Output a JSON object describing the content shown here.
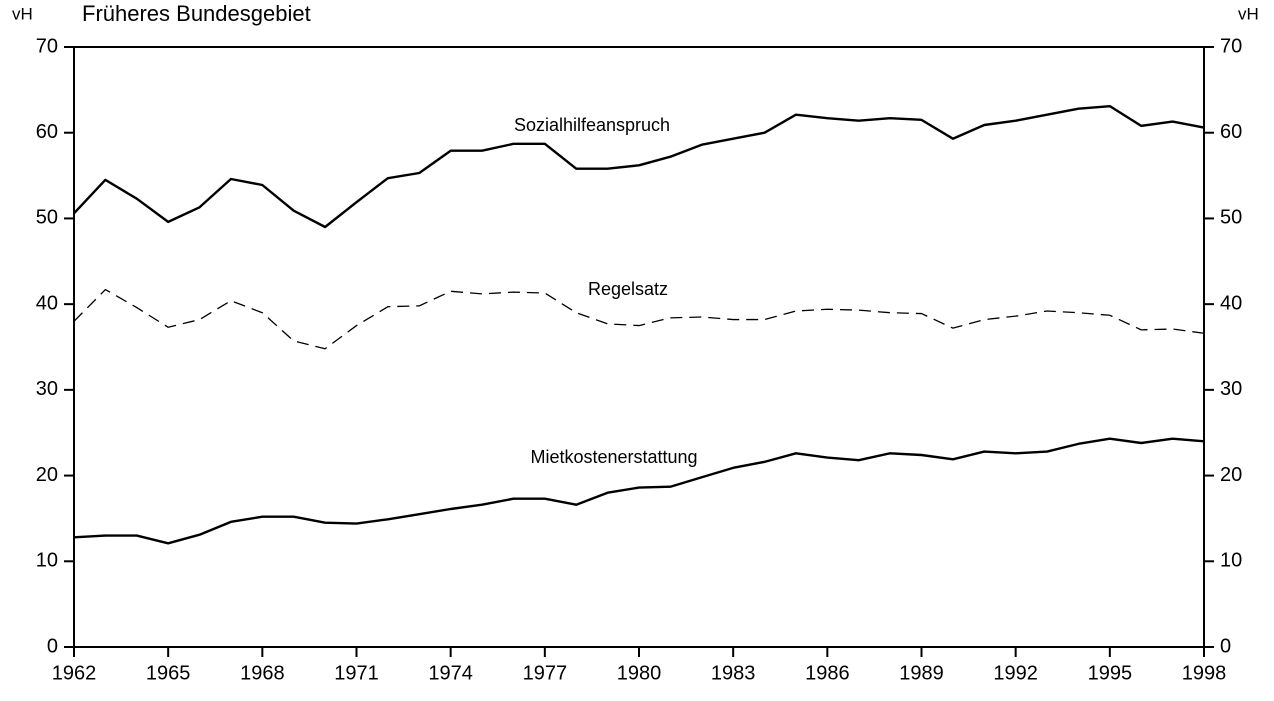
{
  "chart_data": {
    "type": "line",
    "title": "Früheres Bundesgebiet",
    "y_label": "vH",
    "y2_label": "vH",
    "x": [
      1962,
      1963,
      1964,
      1965,
      1966,
      1967,
      1968,
      1969,
      1970,
      1971,
      1972,
      1973,
      1974,
      1975,
      1976,
      1977,
      1978,
      1979,
      1980,
      1981,
      1982,
      1983,
      1984,
      1985,
      1986,
      1987,
      1988,
      1989,
      1990,
      1991,
      1992,
      1993,
      1994,
      1995,
      1996,
      1997,
      1998
    ],
    "xlim": [
      1962,
      1998
    ],
    "xticks": [
      1962,
      1965,
      1968,
      1971,
      1974,
      1977,
      1980,
      1983,
      1986,
      1989,
      1992,
      1995,
      1998
    ],
    "ylim": [
      0,
      70
    ],
    "yticks": [
      0,
      10,
      20,
      30,
      40,
      50,
      60,
      70
    ],
    "y2lim": [
      0,
      70
    ],
    "y2ticks": [
      0,
      10,
      20,
      30,
      40,
      50,
      60,
      70
    ],
    "series": [
      {
        "name": "Sozialhilfeanspruch",
        "color": "#000000",
        "dashed": false,
        "values": [
          50.6,
          54.5,
          52.3,
          49.6,
          51.3,
          54.6,
          53.9,
          50.9,
          49.0,
          51.9,
          54.7,
          55.3,
          57.9,
          57.9,
          58.7,
          58.7,
          55.8,
          55.8,
          56.2,
          57.2,
          58.6,
          59.3,
          60.0,
          62.1,
          61.7,
          61.4,
          61.7,
          61.5,
          59.3,
          60.9,
          61.4,
          62.1,
          62.8,
          63.1,
          60.8,
          61.3,
          60.6
        ]
      },
      {
        "name": "Regelsatz",
        "color": "#000000",
        "dashed": true,
        "values": [
          38.0,
          41.7,
          39.6,
          37.3,
          38.2,
          40.4,
          39.0,
          35.7,
          34.8,
          37.5,
          39.7,
          39.8,
          41.5,
          41.2,
          41.4,
          41.3,
          39.0,
          37.7,
          37.5,
          38.4,
          38.5,
          38.2,
          38.2,
          39.2,
          39.4,
          39.3,
          39.0,
          38.9,
          37.2,
          38.2,
          38.6,
          39.2,
          39.0,
          38.7,
          37.0,
          37.1,
          36.6
        ]
      },
      {
        "name": "Mietkostenerstattung",
        "color": "#000000",
        "dashed": false,
        "values": [
          12.8,
          13.0,
          13.0,
          12.1,
          13.1,
          14.6,
          15.2,
          15.2,
          14.5,
          14.4,
          14.9,
          15.5,
          16.1,
          16.6,
          17.3,
          17.3,
          16.6,
          18.0,
          18.6,
          18.7,
          19.8,
          20.9,
          21.6,
          22.6,
          22.1,
          21.8,
          22.6,
          22.4,
          21.9,
          22.8,
          22.6,
          22.8,
          23.7,
          24.3,
          23.8,
          24.3,
          24.0
        ]
      }
    ]
  }
}
